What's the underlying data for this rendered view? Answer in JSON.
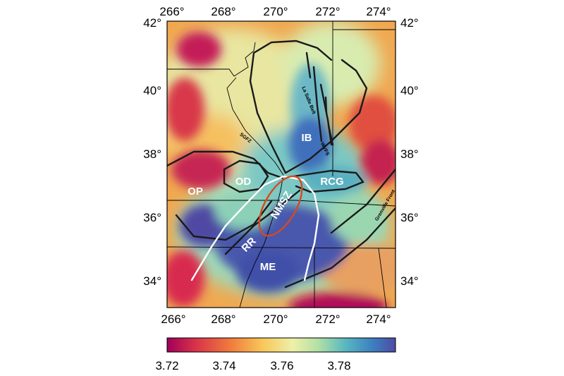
{
  "map": {
    "x_ticks": [
      "266°",
      "268°",
      "270°",
      "272°",
      "274°"
    ],
    "y_ticks": [
      "42°",
      "40°",
      "38°",
      "36°",
      "34°"
    ],
    "lon_values": [
      266,
      268,
      270,
      272,
      274
    ],
    "lat_values": [
      42,
      40,
      38,
      36,
      34
    ],
    "lon_range": [
      266,
      275
    ],
    "lat_range": [
      33,
      42
    ],
    "regions": [
      {
        "id": "IB",
        "label": "IB",
        "lon": 271.45,
        "lat": 38.45
      },
      {
        "id": "RCG",
        "label": "RCG",
        "lon": 272.6,
        "lat": 37.0
      },
      {
        "id": "OD",
        "label": "OD",
        "lon": 269.5,
        "lat": 37.0
      },
      {
        "id": "OP",
        "label": "OP",
        "lon": 267.0,
        "lat": 36.6
      },
      {
        "id": "RR",
        "label": "RR",
        "lon": 269.25,
        "lat": 35.1
      },
      {
        "id": "ME",
        "label": "ME",
        "lon": 270.0,
        "lat": 34.4
      },
      {
        "id": "NMSZ",
        "label": "NMSZ",
        "lon": 270.6,
        "lat": 36.25
      }
    ],
    "faults": [
      {
        "id": "la-salle-belt",
        "label": "La Salle Belt",
        "lon": 271.65,
        "lat": 39.7
      },
      {
        "id": "sgfz",
        "label": "SGFZ",
        "lon": 269.3,
        "lat": 38.6
      },
      {
        "id": "wvfs",
        "label": "WVFS",
        "lon": 272.4,
        "lat": 38.2
      },
      {
        "id": "grenville-front",
        "label": "Grenville Front",
        "lon": 274.1,
        "lat": 36.4
      }
    ]
  },
  "colorbar": {
    "ticks": [
      "3.72",
      "3.74",
      "3.76",
      "3.78"
    ],
    "tick_values": [
      3.72,
      3.74,
      3.76,
      3.78
    ],
    "range": [
      3.715,
      3.795
    ],
    "colors": [
      "#a0005a",
      "#d7304a",
      "#f07d3c",
      "#f8c85a",
      "#eef0a8",
      "#b3e0a6",
      "#58b8c0",
      "#3d7fc0",
      "#4f4aa3"
    ]
  }
}
